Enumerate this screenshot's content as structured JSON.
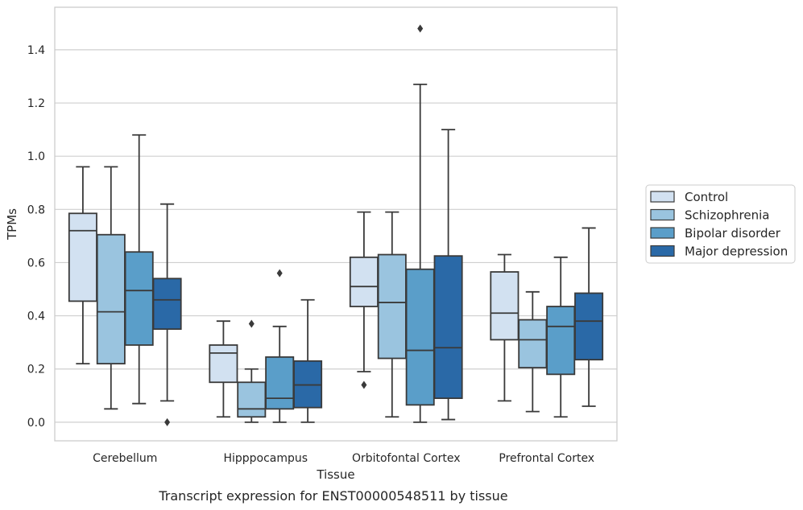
{
  "chart_data": {
    "type": "box",
    "xlabel": "Tissue",
    "ylabel": "TPMs",
    "caption": "Transcript expression for ENST00000548511 by tissue",
    "ylim": [
      -0.07,
      1.56
    ],
    "yticks": [
      "0.0",
      "0.2",
      "0.4",
      "0.6",
      "0.8",
      "1.0",
      "1.2",
      "1.4"
    ],
    "grid": true,
    "legend_position": "right",
    "categories": [
      "Cerebellum",
      "Hipppocampus",
      "Orbitofontal Cortex",
      "Prefrontal Cortex"
    ],
    "series": [
      {
        "name": "Control",
        "color": "#d2e1f1",
        "boxes": [
          {
            "whisker_low": 0.22,
            "q1": 0.455,
            "median": 0.72,
            "q3": 0.785,
            "whisker_high": 0.96,
            "outliers": []
          },
          {
            "whisker_low": 0.02,
            "q1": 0.15,
            "median": 0.26,
            "q3": 0.29,
            "whisker_high": 0.38,
            "outliers": []
          },
          {
            "whisker_low": 0.19,
            "q1": 0.435,
            "median": 0.51,
            "q3": 0.62,
            "whisker_high": 0.79,
            "outliers": [
              0.14
            ]
          },
          {
            "whisker_low": 0.08,
            "q1": 0.31,
            "median": 0.41,
            "q3": 0.565,
            "whisker_high": 0.63,
            "outliers": []
          }
        ]
      },
      {
        "name": "Schizophrenia",
        "color": "#9ac4df",
        "boxes": [
          {
            "whisker_low": 0.05,
            "q1": 0.22,
            "median": 0.415,
            "q3": 0.705,
            "whisker_high": 0.96,
            "outliers": []
          },
          {
            "whisker_low": 0.0,
            "q1": 0.02,
            "median": 0.05,
            "q3": 0.15,
            "whisker_high": 0.2,
            "outliers": [
              0.37
            ]
          },
          {
            "whisker_low": 0.02,
            "q1": 0.24,
            "median": 0.45,
            "q3": 0.63,
            "whisker_high": 0.79,
            "outliers": []
          },
          {
            "whisker_low": 0.04,
            "q1": 0.205,
            "median": 0.31,
            "q3": 0.385,
            "whisker_high": 0.49,
            "outliers": []
          }
        ]
      },
      {
        "name": "Bipolar disorder",
        "color": "#5a9ec9",
        "boxes": [
          {
            "whisker_low": 0.07,
            "q1": 0.29,
            "median": 0.495,
            "q3": 0.64,
            "whisker_high": 1.08,
            "outliers": []
          },
          {
            "whisker_low": 0.0,
            "q1": 0.05,
            "median": 0.09,
            "q3": 0.245,
            "whisker_high": 0.36,
            "outliers": [
              0.56
            ]
          },
          {
            "whisker_low": 0.0,
            "q1": 0.065,
            "median": 0.27,
            "q3": 0.575,
            "whisker_high": 1.27,
            "outliers": [
              1.48
            ]
          },
          {
            "whisker_low": 0.02,
            "q1": 0.18,
            "median": 0.36,
            "q3": 0.435,
            "whisker_high": 0.62,
            "outliers": []
          }
        ]
      },
      {
        "name": "Major depression",
        "color": "#2a69a7",
        "boxes": [
          {
            "whisker_low": 0.08,
            "q1": 0.35,
            "median": 0.46,
            "q3": 0.54,
            "whisker_high": 0.82,
            "outliers": [
              0.0
            ]
          },
          {
            "whisker_low": 0.0,
            "q1": 0.055,
            "median": 0.14,
            "q3": 0.23,
            "whisker_high": 0.46,
            "outliers": []
          },
          {
            "whisker_low": 0.01,
            "q1": 0.09,
            "median": 0.28,
            "q3": 0.625,
            "whisker_high": 1.1,
            "outliers": []
          },
          {
            "whisker_low": 0.06,
            "q1": 0.235,
            "median": 0.38,
            "q3": 0.485,
            "whisker_high": 0.73,
            "outliers": []
          }
        ]
      }
    ]
  }
}
